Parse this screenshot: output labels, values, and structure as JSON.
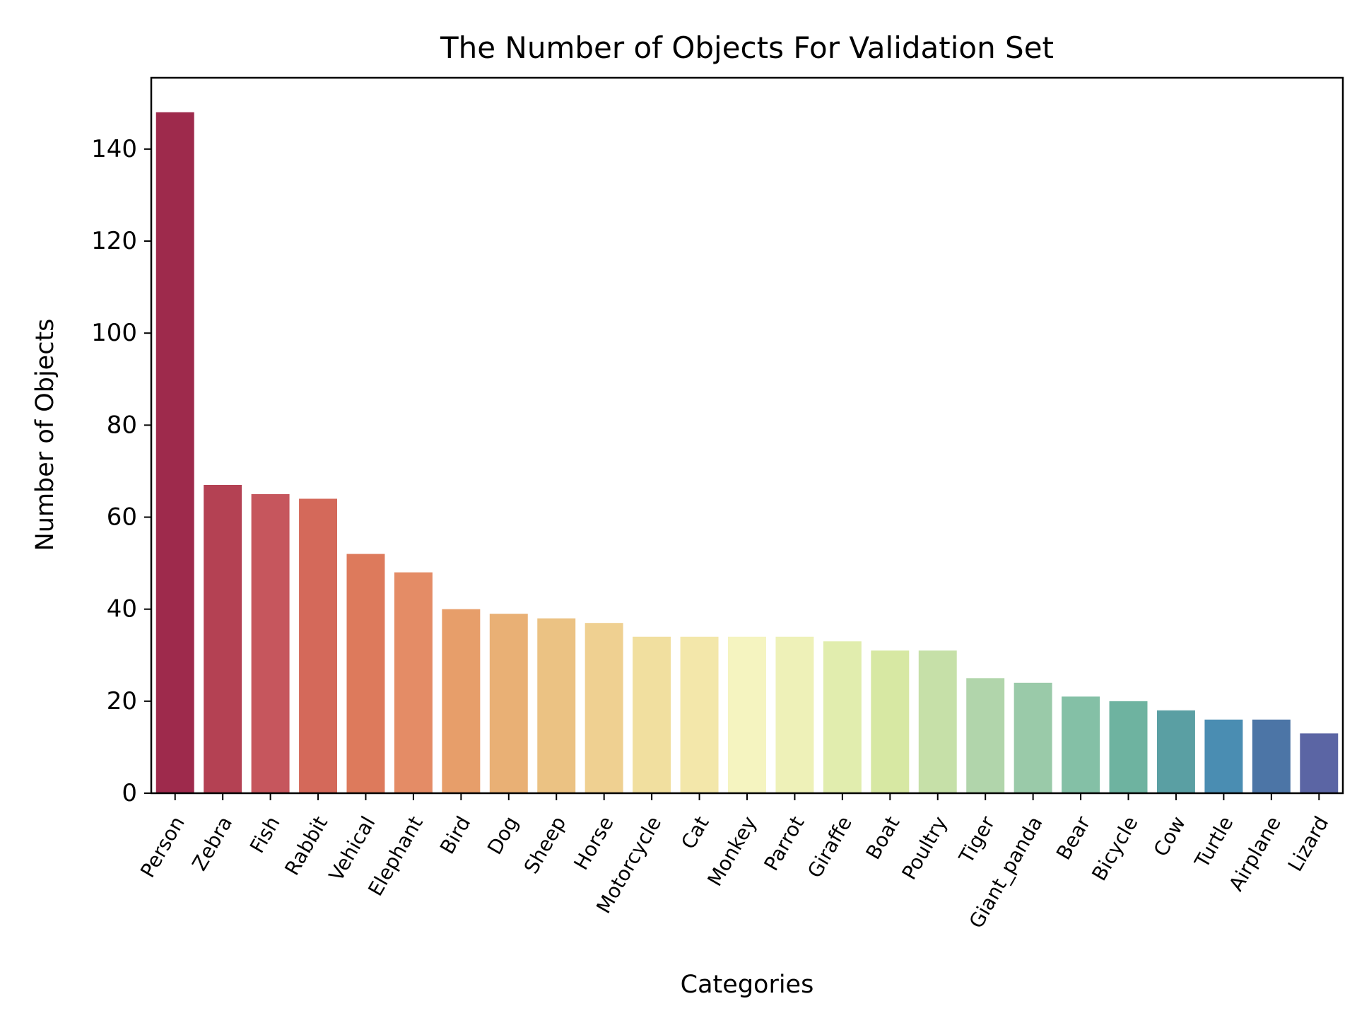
{
  "chart_data": {
    "type": "bar",
    "title": "The Number of Objects For Validation Set",
    "xlabel": "Categories",
    "ylabel": "Number of Objects",
    "ylim": [
      0,
      155.5
    ],
    "yticks": [
      0,
      20,
      40,
      60,
      80,
      100,
      120,
      140
    ],
    "grid": false,
    "legend": false,
    "palette": "Spectral",
    "categories": [
      "Person",
      "Zebra",
      "Fish",
      "Rabbit",
      "Vehical",
      "Elephant",
      "Bird",
      "Dog",
      "Sheep",
      "Horse",
      "Motorcycle",
      "Cat",
      "Monkey",
      "Parrot",
      "Giraffe",
      "Boat",
      "Poultry",
      "Tiger",
      "Giant_panda",
      "Bear",
      "Bicycle",
      "Cow",
      "Turtle",
      "Airplane",
      "Lizard"
    ],
    "values": [
      148,
      67,
      65,
      64,
      52,
      48,
      40,
      39,
      38,
      37,
      34,
      34,
      34,
      34,
      33,
      31,
      31,
      25,
      24,
      21,
      20,
      18,
      16,
      16,
      13
    ],
    "colors": [
      "#9e2a4c",
      "#b44153",
      "#c6565d",
      "#d4695a",
      "#dd7a5c",
      "#e48c66",
      "#e79e6a",
      "#e9b075",
      "#ebc283",
      "#efd091",
      "#f1df9f",
      "#f3e7aa",
      "#f5f4c0",
      "#eef1b8",
      "#e1edae",
      "#d7e8a3",
      "#c6e0a8",
      "#b1d5ab",
      "#9acaa9",
      "#84c0a6",
      "#6eb3a0",
      "#5a9fa3",
      "#4a8db2",
      "#4c75a6",
      "#5b65a4"
    ]
  }
}
